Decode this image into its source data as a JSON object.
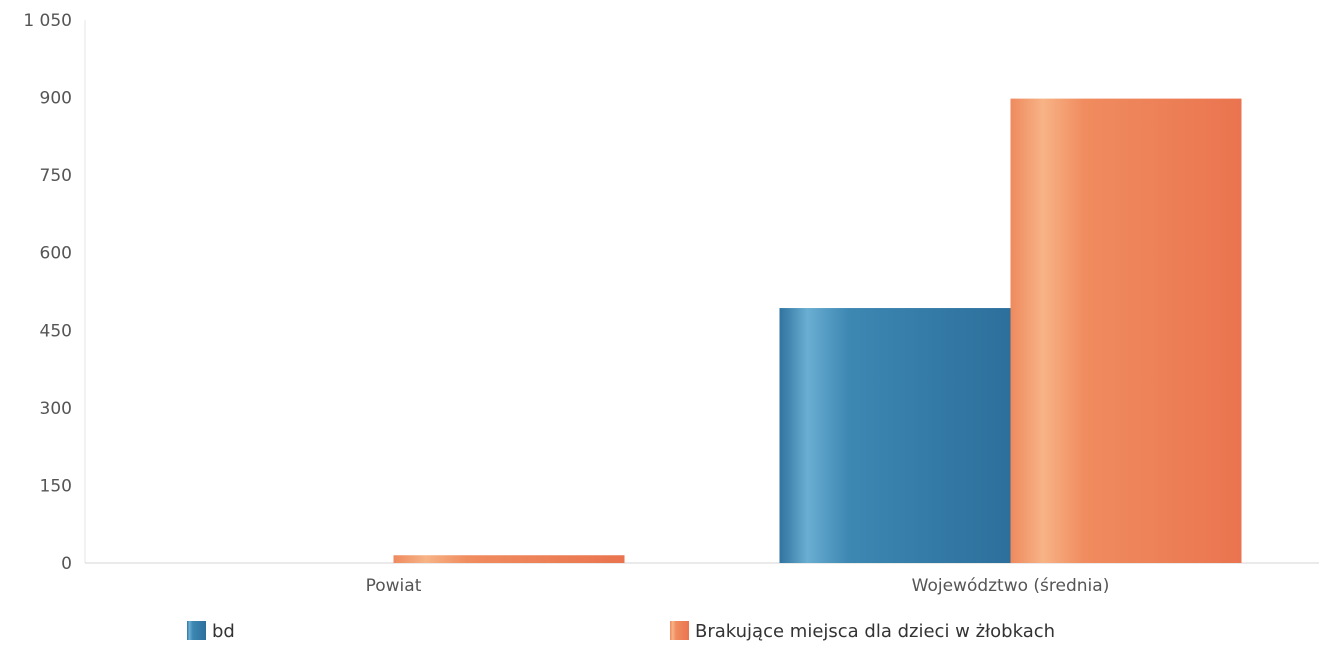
{
  "chart_data": {
    "type": "bar",
    "title": "",
    "xlabel": "",
    "ylabel": "",
    "categories": [
      "Powiat",
      "Województwo (średnia)"
    ],
    "series": [
      {
        "name": "bd",
        "values": [
          0,
          493
        ],
        "color": "#3a7fa8"
      },
      {
        "name": "Brakujące miejsca dla dzieci w żłobkach",
        "values": [
          15,
          898
        ],
        "color": "#ee7f55"
      }
    ],
    "ylim": [
      0,
      1050
    ],
    "yticks": [
      0,
      150,
      300,
      450,
      600,
      750,
      900,
      1050
    ],
    "ytick_labels": [
      "0",
      "150",
      "300",
      "450",
      "600",
      "750",
      "900",
      "1 050"
    ],
    "grid": false,
    "legend_position": "bottom"
  }
}
